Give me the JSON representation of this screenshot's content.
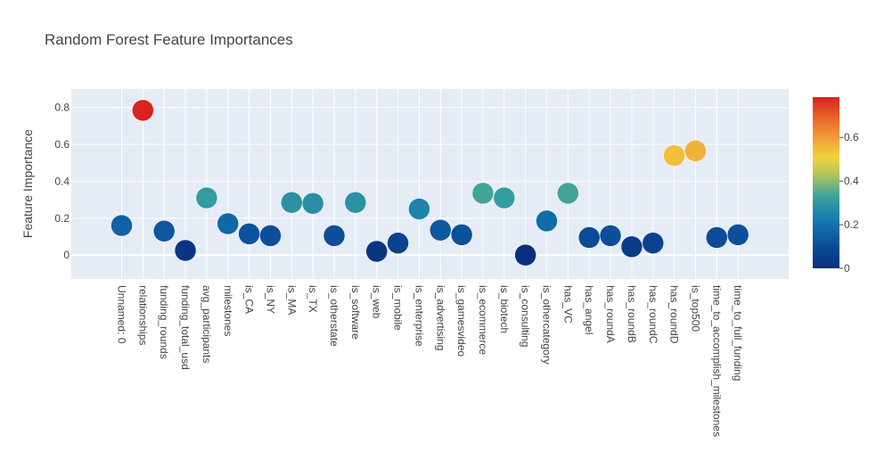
{
  "chart_data": {
    "type": "scatter",
    "title": "Random Forest Feature Importances",
    "xlabel": "",
    "ylabel": "Feature Importance",
    "ylim": [
      -0.13,
      0.9
    ],
    "yticks": [
      0,
      0.2,
      0.4,
      0.6,
      0.8
    ],
    "ytick_labels": [
      "0",
      "0.2",
      "0.4",
      "0.6",
      "0.8"
    ],
    "grid": true,
    "plot_background": "#e5ecf6",
    "marker_color_by": "value",
    "categories": [
      "Unnamed: 0",
      "relationships",
      "funding_rounds",
      "funding_total_usd",
      "avg_participants",
      "milestones",
      "is_CA",
      "is_NY",
      "is_MA",
      "is_TX",
      "is_otherstate",
      "is_software",
      "is_web",
      "is_mobile",
      "is_enterprise",
      "is_advertising",
      "is_gamesvideo",
      "is_ecommerce",
      "is_biotech",
      "is_consulting",
      "is_othercategory",
      "has_VC",
      "has_angel",
      "has_roundA",
      "has_roundB",
      "has_roundC",
      "has_roundD",
      "is_top500",
      "time_to_accomplish_milestones",
      "time_to_full_funding"
    ],
    "values": [
      0.16,
      0.785,
      0.13,
      0.025,
      0.31,
      0.17,
      0.115,
      0.105,
      0.285,
      0.28,
      0.105,
      0.285,
      0.02,
      0.065,
      0.25,
      0.135,
      0.11,
      0.335,
      0.31,
      0.0,
      0.185,
      0.335,
      0.095,
      0.105,
      0.045,
      0.065,
      0.54,
      0.565,
      0.095,
      0.11
    ],
    "colorbar": {
      "range": [
        0,
        0.785
      ],
      "ticks": [
        0,
        0.2,
        0.4,
        0.6
      ],
      "tick_labels": [
        "0",
        "0.2",
        "0.4",
        "0.6"
      ],
      "colorscale": [
        [
          0.0,
          "#0a2f7c"
        ],
        [
          0.14,
          "#0c4f9a"
        ],
        [
          0.28,
          "#1479b0"
        ],
        [
          0.42,
          "#3ba29a"
        ],
        [
          0.55,
          "#b4c75a"
        ],
        [
          0.65,
          "#f0d23a"
        ],
        [
          0.75,
          "#f3a33a"
        ],
        [
          0.87,
          "#ea6a2d"
        ],
        [
          1.0,
          "#d8231f"
        ]
      ]
    }
  }
}
